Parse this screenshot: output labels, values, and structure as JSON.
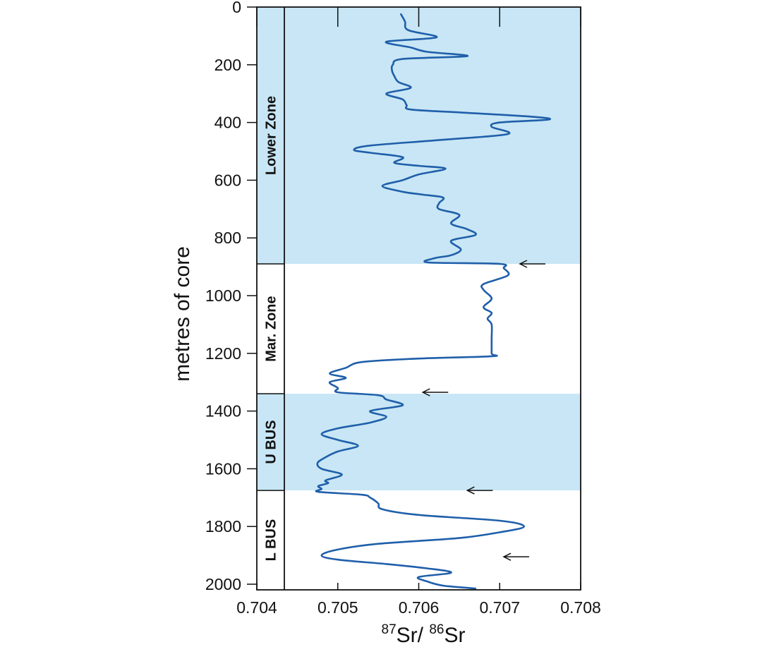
{
  "chart_data": {
    "type": "line",
    "ylabel": "metres of core",
    "xlabel": {
      "mass1": "87",
      "el1": "Sr/ ",
      "mass2": "86",
      "el2": "Sr"
    },
    "xlim": [
      0.704,
      0.708
    ],
    "ylim": [
      0,
      2000
    ],
    "y_inverted": true,
    "x_ticks": [
      "0.704",
      "0.705",
      "0.706",
      "0.707",
      "0.708"
    ],
    "y_ticks": [
      "0",
      "200",
      "400",
      "600",
      "800",
      "1000",
      "1200",
      "1400",
      "1600",
      "1800",
      "2000"
    ],
    "zones": [
      {
        "label": "Lower Zone",
        "top": 0,
        "bottom": 890,
        "color": "#c8e6f5"
      },
      {
        "label": "Mar. Zone",
        "top": 890,
        "bottom": 1340,
        "color": "#ffffff"
      },
      {
        "label": "U BUS",
        "top": 1340,
        "bottom": 1675,
        "color": "#c8e6f5"
      },
      {
        "label": "L BUS",
        "top": 1675,
        "bottom": 2030,
        "color": "#ffffff"
      }
    ],
    "arrows": [
      {
        "depth": 890,
        "ratio": 0.70725
      },
      {
        "depth": 1335,
        "ratio": 0.70605
      },
      {
        "depth": 1675,
        "ratio": 0.7066
      },
      {
        "depth": 1905,
        "ratio": 0.70705
      }
    ],
    "series": [
      {
        "color": "#1f5faa",
        "depth": [
          25,
          50,
          80,
          105,
          120,
          140,
          155,
          170,
          180,
          200,
          220,
          240,
          260,
          280,
          300,
          320,
          340,
          355,
          365,
          380,
          390,
          400,
          415,
          440,
          460,
          480,
          495,
          505,
          520,
          540,
          550,
          560,
          580,
          600,
          620,
          640,
          650,
          660,
          680,
          700,
          720,
          750,
          770,
          790,
          810,
          840,
          860,
          870,
          885,
          890,
          905,
          930,
          960,
          980,
          1010,
          1040,
          1060,
          1080,
          1100,
          1150,
          1200,
          1210,
          1218,
          1230,
          1250,
          1270,
          1285,
          1300,
          1320,
          1335,
          1345,
          1360,
          1380,
          1400,
          1420,
          1440,
          1460,
          1480,
          1500,
          1520,
          1540,
          1560,
          1580,
          1600,
          1620,
          1640,
          1650,
          1660,
          1670,
          1680,
          1690,
          1700,
          1720,
          1740,
          1760,
          1780,
          1800,
          1820,
          1840,
          1860,
          1880,
          1900,
          1915,
          1930,
          1945,
          1960,
          1975,
          1990,
          2005,
          2015
        ],
        "values": [
          0.70578,
          0.70583,
          0.70587,
          0.70622,
          0.7056,
          0.7059,
          0.7061,
          0.7066,
          0.7058,
          0.70568,
          0.70567,
          0.7057,
          0.70575,
          0.7059,
          0.7056,
          0.7058,
          0.70585,
          0.7059,
          0.7065,
          0.7074,
          0.7076,
          0.707,
          0.7069,
          0.7071,
          0.7063,
          0.7054,
          0.7052,
          0.7054,
          0.7058,
          0.7057,
          0.706,
          0.70633,
          0.706,
          0.7058,
          0.70555,
          0.7058,
          0.70605,
          0.7063,
          0.70625,
          0.70625,
          0.7065,
          0.7064,
          0.7066,
          0.7067,
          0.7064,
          0.70652,
          0.7064,
          0.7062,
          0.70612,
          0.707,
          0.70705,
          0.7071,
          0.7068,
          0.7068,
          0.7069,
          0.7068,
          0.7069,
          0.70685,
          0.7069,
          0.7069,
          0.7069,
          0.7069,
          0.706,
          0.7053,
          0.7051,
          0.7049,
          0.7051,
          0.7049,
          0.705,
          0.705,
          0.7055,
          0.7056,
          0.7058,
          0.7054,
          0.7056,
          0.7054,
          0.705,
          0.7048,
          0.705,
          0.70525,
          0.705,
          0.70485,
          0.70475,
          0.7048,
          0.70505,
          0.70485,
          0.70488,
          0.70476,
          0.7048,
          0.70476,
          0.7053,
          0.7054,
          0.7055,
          0.70555,
          0.706,
          0.707,
          0.7073,
          0.707,
          0.7065,
          0.7055,
          0.705,
          0.7048,
          0.705,
          0.7056,
          0.7061,
          0.7064,
          0.706,
          0.7061,
          0.7063,
          0.7067
        ]
      }
    ]
  }
}
